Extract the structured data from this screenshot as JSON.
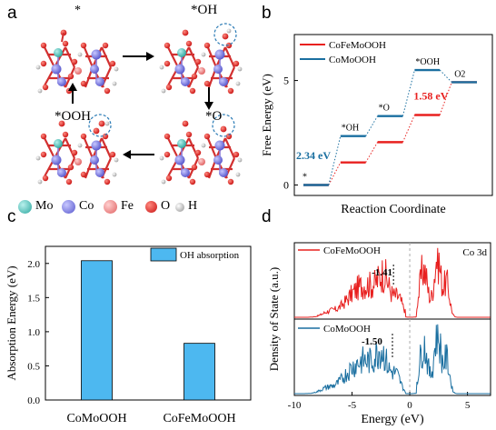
{
  "panels": {
    "a": "a",
    "b": "b",
    "c": "c",
    "d": "d"
  },
  "panel_a": {
    "states": [
      "*",
      "*OH",
      "*O",
      "*OOH"
    ],
    "legend": [
      {
        "label": "Mo",
        "color": "#3dbdb5"
      },
      {
        "label": "Co",
        "color": "#7b7be0"
      },
      {
        "label": "Fe",
        "color": "#f08080"
      },
      {
        "label": "O",
        "color": "#e8201f"
      },
      {
        "label": "H",
        "color": "#d9d9d9"
      }
    ]
  },
  "chart_data": [
    {
      "type": "line",
      "panel": "b",
      "xlabel": "Reaction Coordinate",
      "ylabel": "Free Energy (eV)",
      "y_ticks": [
        0,
        5
      ],
      "ylim": [
        -0.5,
        7.2
      ],
      "legend_position": "top-left",
      "steps": [
        "*",
        "*OH",
        "*O",
        "*OOH",
        "O2"
      ],
      "step_labels": [
        {
          "text": "*"
        },
        {
          "text": "*OH"
        },
        {
          "text": "*O"
        },
        {
          "text": "*OOH"
        },
        {
          "text": "O2"
        }
      ],
      "series": [
        {
          "name": "CoFeMoOOH",
          "color": "#e8201f",
          "values": [
            0,
            1.08,
            2.05,
            3.35,
            4.92
          ]
        },
        {
          "name": "CoMoOOH",
          "color": "#1a6fa0",
          "values": [
            0,
            2.34,
            3.3,
            5.5,
            4.92
          ]
        }
      ],
      "annotations": [
        {
          "text": "2.34 eV",
          "color": "#1a6fa0"
        },
        {
          "text": "1.58 eV",
          "color": "#e8201f"
        }
      ]
    },
    {
      "type": "bar",
      "panel": "c",
      "xlabel": "",
      "ylabel": "Absorption Energy (eV)",
      "categories": [
        "CoMoOOH",
        "CoFeMoOOH"
      ],
      "series": [
        {
          "name": "OH absorption",
          "color": "#4db8f0",
          "values": [
            2.04,
            0.83
          ]
        }
      ],
      "ylim": [
        0,
        2.25
      ],
      "y_ticks": [
        "0.0",
        "0.5",
        "1.0",
        "1.5",
        "2.0"
      ],
      "legend_position": "top-right"
    },
    {
      "type": "line",
      "panel": "d",
      "xlabel": "Energy (eV)",
      "ylabel": "Density of State (a.u.)",
      "xlim": [
        -10,
        7
      ],
      "x_ticks": [
        "-10",
        "-5",
        "0",
        "5"
      ],
      "corner_label": "Co 3d",
      "series": [
        {
          "name": "CoFeMoOOH",
          "color": "#e8201f",
          "d_band_center": "-1.41"
        },
        {
          "name": "CoMoOOH",
          "color": "#1a6fa0",
          "d_band_center": "-1.50"
        }
      ]
    }
  ]
}
